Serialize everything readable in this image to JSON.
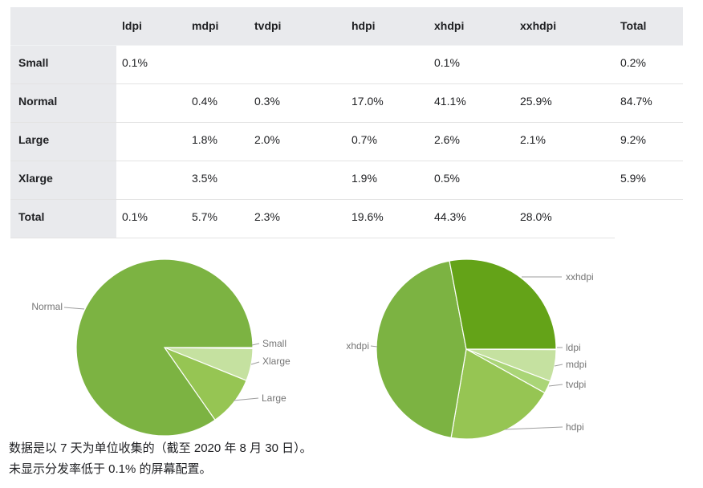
{
  "table": {
    "column_headers": [
      "",
      "ldpi",
      "mdpi",
      "tvdpi",
      "hdpi",
      "xhdpi",
      "xxhdpi",
      "Total"
    ],
    "rows": [
      {
        "label": "Small",
        "cells": [
          "0.1%",
          "",
          "",
          "",
          "0.1%",
          "",
          "0.2%"
        ]
      },
      {
        "label": "Normal",
        "cells": [
          "",
          "0.4%",
          "0.3%",
          "17.0%",
          "41.1%",
          "25.9%",
          "84.7%"
        ]
      },
      {
        "label": "Large",
        "cells": [
          "",
          "1.8%",
          "2.0%",
          "0.7%",
          "2.6%",
          "2.1%",
          "9.2%"
        ]
      },
      {
        "label": "Xlarge",
        "cells": [
          "",
          "3.5%",
          "",
          "1.9%",
          "0.5%",
          "",
          "5.9%"
        ]
      },
      {
        "label": "Total",
        "cells": [
          "0.1%",
          "5.7%",
          "2.3%",
          "19.6%",
          "44.3%",
          "28.0%",
          ""
        ]
      }
    ]
  },
  "chart_data": [
    {
      "type": "pie",
      "name": "screen-size-distribution",
      "direction": "clockwise",
      "start_angle_deg": 0,
      "legend_position": "callout-labels",
      "slices": [
        {
          "label": "Small",
          "value": 0.2,
          "color": "#d9ecbe"
        },
        {
          "label": "Xlarge",
          "value": 5.9,
          "color": "#c5e1a0"
        },
        {
          "label": "Large",
          "value": 9.2,
          "color": "#96c553"
        },
        {
          "label": "Normal",
          "value": 84.7,
          "color": "#7cb342"
        }
      ]
    },
    {
      "type": "pie",
      "name": "screen-density-distribution",
      "direction": "clockwise",
      "start_angle_deg": 0,
      "legend_position": "callout-labels",
      "slices": [
        {
          "label": "ldpi",
          "value": 0.1,
          "color": "#d9ecbe"
        },
        {
          "label": "mdpi",
          "value": 5.7,
          "color": "#c5e1a0"
        },
        {
          "label": "tvdpi",
          "value": 2.3,
          "color": "#aad577"
        },
        {
          "label": "hdpi",
          "value": 19.6,
          "color": "#96c553"
        },
        {
          "label": "xhdpi",
          "value": 44.3,
          "color": "#7cb342"
        },
        {
          "label": "xxhdpi",
          "value": 28.0,
          "color": "#64a318"
        }
      ]
    }
  ],
  "footer": {
    "lines": [
      "数据是以 7 天为单位收集的（截至 2020 年 8 月 30 日）。",
      "未显示分发率低于 0.1% 的屏幕配置。"
    ]
  },
  "colors": {
    "header_bg": "#e9eaed",
    "row_divider": "#e3e3e3",
    "callout_text": "#757575",
    "leader_line": "#9e9e9e",
    "table_text": "#202124"
  }
}
